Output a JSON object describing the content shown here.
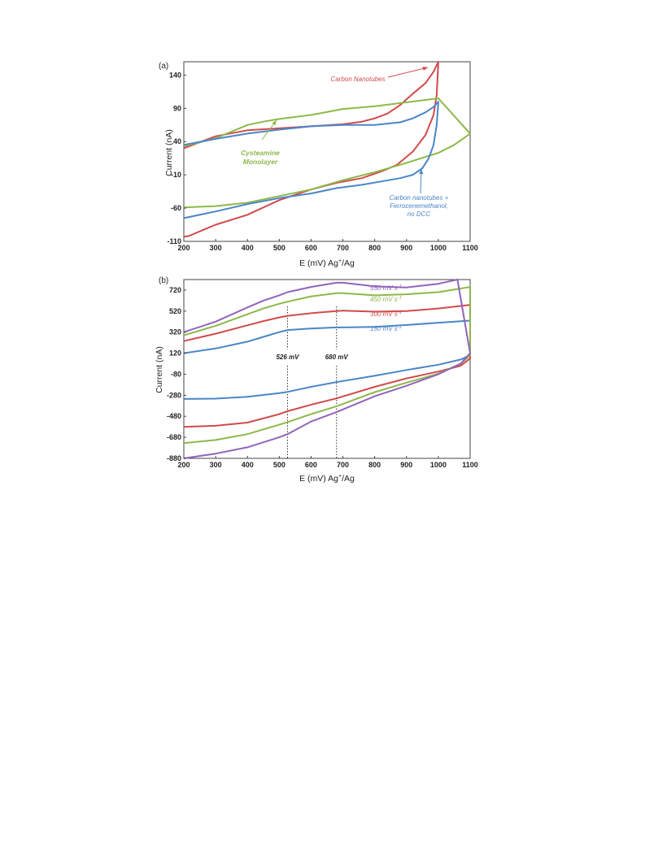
{
  "chart_data": [
    {
      "panel": "(a)",
      "type": "line",
      "xlabel": "E (mV) Ag",
      "xlabel_sup": "+",
      "xlabel_suffix": "/Ag",
      "ylabel": "Current (nA)",
      "xlim": [
        200,
        1100
      ],
      "ylim": [
        -110,
        160
      ],
      "xticks": [
        200,
        300,
        400,
        500,
        600,
        700,
        800,
        900,
        1000,
        1100
      ],
      "yticks": [
        -110,
        -60,
        -10,
        40,
        90,
        140
      ],
      "series": [
        {
          "color": "#d14b4b",
          "points": [
            [
              200,
              -103
            ],
            [
              215,
              -102
            ],
            [
              300,
              -85
            ],
            [
              400,
              -70
            ],
            [
              500,
              -48
            ],
            [
              600,
              -32
            ],
            [
              680,
              -22
            ],
            [
              760,
              -15
            ],
            [
              820,
              -5
            ],
            [
              870,
              5
            ],
            [
              920,
              25
            ],
            [
              960,
              50
            ],
            [
              985,
              80
            ],
            [
              995,
              110
            ],
            [
              1000,
              160
            ],
            [
              985,
              145
            ],
            [
              960,
              128
            ],
            [
              920,
              112
            ],
            [
              880,
              95
            ],
            [
              840,
              82
            ],
            [
              800,
              75
            ],
            [
              760,
              70
            ],
            [
              700,
              66
            ],
            [
              600,
              63
            ],
            [
              500,
              60
            ],
            [
              400,
              57
            ],
            [
              300,
              48
            ],
            [
              200,
              30
            ]
          ]
        },
        {
          "color": "#8db84a",
          "points": [
            [
              200,
              -59
            ],
            [
              300,
              -57
            ],
            [
              400,
              -52
            ],
            [
              500,
              -42
            ],
            [
              600,
              -32
            ],
            [
              700,
              -18
            ],
            [
              800,
              -6
            ],
            [
              900,
              8
            ],
            [
              1000,
              23
            ],
            [
              1050,
              35
            ],
            [
              1100,
              52
            ],
            [
              1000,
              105
            ],
            [
              800,
              93
            ],
            [
              700,
              89
            ],
            [
              600,
              80
            ],
            [
              500,
              74
            ],
            [
              450,
              70
            ],
            [
              400,
              65
            ],
            [
              350,
              55
            ],
            [
              300,
              45
            ],
            [
              200,
              33
            ]
          ]
        },
        {
          "color": "#4a86c8",
          "points": [
            [
              200,
              -75
            ],
            [
              300,
              -65
            ],
            [
              400,
              -54
            ],
            [
              500,
              -45
            ],
            [
              600,
              -38
            ],
            [
              680,
              -30
            ],
            [
              760,
              -25
            ],
            [
              820,
              -20
            ],
            [
              880,
              -15
            ],
            [
              920,
              -10
            ],
            [
              950,
              0
            ],
            [
              970,
              15
            ],
            [
              985,
              35
            ],
            [
              995,
              65
            ],
            [
              1000,
              100
            ],
            [
              985,
              92
            ],
            [
              960,
              84
            ],
            [
              920,
              75
            ],
            [
              880,
              69
            ],
            [
              800,
              65
            ],
            [
              700,
              65
            ],
            [
              600,
              63
            ],
            [
              500,
              58
            ],
            [
              400,
              52
            ],
            [
              300,
              44
            ],
            [
              200,
              35
            ]
          ]
        }
      ],
      "annotations": [
        {
          "lines": [
            "Carbon Nanotubes"
          ],
          "color": "#d14b4b"
        },
        {
          "lines": [
            "Cysteamine",
            "Monolayer"
          ],
          "color": "#8db84a"
        },
        {
          "lines": [
            "Carbon nanotubes +",
            "Ferrocenemethanol,",
            "no DCC"
          ],
          "color": "#4a86c8"
        }
      ]
    },
    {
      "panel": "(b)",
      "type": "line",
      "xlabel": "E (mV) Ag",
      "xlabel_sup": "+",
      "xlabel_suffix": "/Ag",
      "ylabel": "Current (nA)",
      "xlim": [
        200,
        1100
      ],
      "ylim": [
        -880,
        820
      ],
      "xticks": [
        200,
        300,
        400,
        500,
        600,
        700,
        800,
        900,
        1000,
        1100
      ],
      "yticks": [
        -880,
        -680,
        -480,
        -280,
        -80,
        120,
        320,
        520,
        720
      ],
      "markers": [
        {
          "x": 526,
          "label": "526 mV"
        },
        {
          "x": 680,
          "label": "680 mV"
        }
      ],
      "series": [
        {
          "name_prefix": "150 mV s",
          "name_sup": "-1",
          "color": "#4a86c8",
          "points": [
            [
              200,
              -315
            ],
            [
              300,
              -312
            ],
            [
              400,
              -295
            ],
            [
              500,
              -260
            ],
            [
              526,
              -248
            ],
            [
              600,
              -200
            ],
            [
              680,
              -155
            ],
            [
              800,
              -95
            ],
            [
              900,
              -40
            ],
            [
              1000,
              10
            ],
            [
              1070,
              60
            ],
            [
              1100,
              100
            ],
            [
              1100,
              430
            ],
            [
              1000,
              410
            ],
            [
              900,
              388
            ],
            [
              800,
              370
            ],
            [
              700,
              365
            ],
            [
              680,
              365
            ],
            [
              600,
              355
            ],
            [
              526,
              340
            ],
            [
              500,
              320
            ],
            [
              450,
              275
            ],
            [
              400,
              230
            ],
            [
              300,
              165
            ],
            [
              200,
              120
            ]
          ]
        },
        {
          "name_prefix": "300 mV s",
          "name_sup": "-1",
          "color": "#d14b4b",
          "points": [
            [
              200,
              -580
            ],
            [
              300,
              -570
            ],
            [
              400,
              -540
            ],
            [
              500,
              -460
            ],
            [
              526,
              -432
            ],
            [
              600,
              -370
            ],
            [
              680,
              -310
            ],
            [
              800,
              -200
            ],
            [
              900,
              -120
            ],
            [
              1000,
              -55
            ],
            [
              1070,
              0
            ],
            [
              1100,
              70
            ],
            [
              1100,
              580
            ],
            [
              1000,
              545
            ],
            [
              900,
              520
            ],
            [
              800,
              515
            ],
            [
              700,
              525
            ],
            [
              680,
              520
            ],
            [
              600,
              500
            ],
            [
              526,
              475
            ],
            [
              500,
              460
            ],
            [
              450,
              425
            ],
            [
              400,
              385
            ],
            [
              300,
              305
            ],
            [
              200,
              235
            ]
          ]
        },
        {
          "name_prefix": "450 mV s",
          "name_sup": "-1",
          "color": "#8db84a",
          "points": [
            [
              200,
              -735
            ],
            [
              300,
              -705
            ],
            [
              400,
              -650
            ],
            [
              500,
              -560
            ],
            [
              526,
              -535
            ],
            [
              600,
              -460
            ],
            [
              680,
              -385
            ],
            [
              800,
              -250
            ],
            [
              900,
              -160
            ],
            [
              1000,
              -75
            ],
            [
              1070,
              20
            ],
            [
              1100,
              100
            ],
            [
              1100,
              750
            ],
            [
              1000,
              700
            ],
            [
              900,
              680
            ],
            [
              800,
              670
            ],
            [
              700,
              690
            ],
            [
              680,
              690
            ],
            [
              600,
              660
            ],
            [
              526,
              610
            ],
            [
              500,
              590
            ],
            [
              450,
              545
            ],
            [
              400,
              490
            ],
            [
              300,
              380
            ],
            [
              200,
              290
            ]
          ]
        },
        {
          "name_prefix": "550 mV s",
          "name_sup": "-1",
          "color": "#9163ba",
          "points": [
            [
              200,
              -880
            ],
            [
              300,
              -835
            ],
            [
              400,
              -775
            ],
            [
              500,
              -680
            ],
            [
              526,
              -650
            ],
            [
              600,
              -530
            ],
            [
              680,
              -440
            ],
            [
              800,
              -290
            ],
            [
              900,
              -190
            ],
            [
              1000,
              -80
            ],
            [
              1070,
              20
            ],
            [
              1100,
              120
            ],
            [
              1060,
              820
            ],
            [
              1000,
              780
            ],
            [
              900,
              745
            ],
            [
              800,
              755
            ],
            [
              700,
              790
            ],
            [
              680,
              790
            ],
            [
              600,
              750
            ],
            [
              526,
              700
            ],
            [
              500,
              670
            ],
            [
              450,
              620
            ],
            [
              400,
              555
            ],
            [
              300,
              420
            ],
            [
              200,
              320
            ]
          ]
        }
      ]
    }
  ]
}
